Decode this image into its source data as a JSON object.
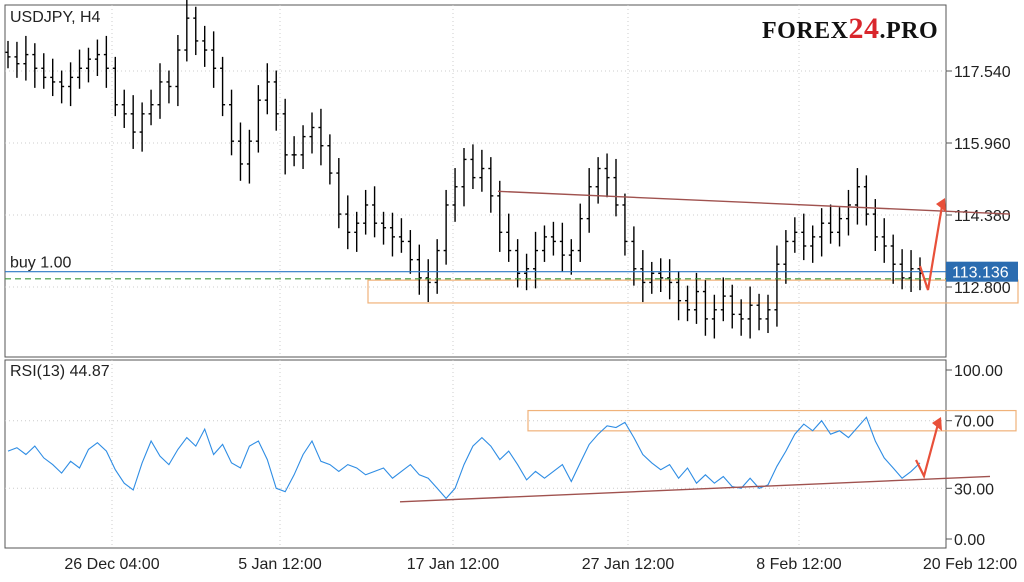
{
  "logo": {
    "prefix": "FOREX",
    "number": "24",
    "suffix": ".PRO"
  },
  "colors": {
    "candle": "#000000",
    "rsi_line": "#2f8de4",
    "trend_line": "#a0524f",
    "zone_border": "#f0b27a",
    "buy_line": "#2b78c4",
    "dashed_line": "#3a9a3a",
    "arrow": "#e8503a",
    "price_tag_bg": "#2b6cb0",
    "price_tag_text": "#ffffff",
    "grid": "#cccccc"
  },
  "chart_data": [
    {
      "type": "candlestick",
      "title": "USDJPY, H4",
      "ylim": [
        110.2,
        119.6
      ],
      "yticks": [
        "117.540",
        "115.960",
        "114.380",
        "112.800"
      ],
      "current_price": "113.136",
      "buy_label": "buy 1.00",
      "buy_level": 113.136,
      "dashed_level": 112.98,
      "x_labels": [
        "26 Dec 04:00",
        "5 Jan 12:00",
        "17 Jan 12:00",
        "27 Jan 12:00",
        "8 Feb 12:00",
        "20 Feb 12:00"
      ],
      "close_series": [
        117.85,
        117.7,
        117.9,
        117.6,
        117.4,
        117.3,
        117.2,
        117.4,
        117.6,
        117.8,
        117.9,
        117.6,
        116.8,
        116.6,
        116.2,
        116.6,
        116.8,
        117.3,
        117.2,
        118.0,
        118.7,
        118.2,
        118.0,
        117.6,
        116.8,
        116.0,
        115.5,
        116.0,
        116.9,
        117.3,
        116.6,
        115.7,
        115.7,
        116.1,
        116.3,
        115.9,
        115.3,
        114.4,
        114.0,
        114.2,
        114.6,
        114.2,
        114.1,
        113.9,
        113.8,
        113.4,
        113.0,
        112.9,
        113.6,
        114.6,
        115.0,
        115.6,
        115.2,
        115.4,
        114.8,
        114.0,
        113.6,
        113.1,
        113.2,
        113.6,
        113.9,
        113.8,
        113.5,
        113.6,
        114.3,
        115.0,
        115.4,
        115.2,
        114.6,
        113.8,
        113.2,
        112.9,
        113.1,
        113.0,
        112.9,
        112.5,
        112.3,
        112.7,
        112.1,
        112.3,
        112.6,
        112.2,
        112.1,
        112.4,
        112.1,
        112.3,
        113.3,
        113.8,
        114.0,
        113.7,
        113.9,
        114.2,
        114.0,
        114.3,
        114.6,
        115.0,
        114.4,
        113.9,
        113.7,
        113.3,
        113.0,
        113.2,
        113.1
      ],
      "resistance_line": {
        "start": {
          "x": "23 Jan",
          "y": 114.9
        },
        "end": {
          "x": "20 Feb",
          "y": 114.4
        }
      },
      "support_zone": [
        112.45,
        112.95
      ]
    },
    {
      "type": "line",
      "title": "RSI(13) 44.87",
      "ylim": [
        0,
        100
      ],
      "yticks": [
        "100.00",
        "70.00",
        "30.00",
        "0.00"
      ],
      "values": [
        52,
        54,
        50,
        55,
        48,
        44,
        39,
        46,
        42,
        53,
        57,
        52,
        41,
        33,
        29,
        45,
        58,
        49,
        44,
        53,
        60,
        55,
        65,
        50,
        56,
        45,
        42,
        55,
        58,
        47,
        30,
        28,
        38,
        50,
        58,
        46,
        44,
        40,
        44,
        42,
        38,
        40,
        42,
        36,
        40,
        44,
        38,
        36,
        30,
        24,
        30,
        44,
        55,
        60,
        55,
        47,
        52,
        44,
        35,
        40,
        36,
        40,
        44,
        34,
        45,
        56,
        62,
        67,
        66,
        69,
        60,
        50,
        45,
        41,
        44,
        36,
        42,
        33,
        38,
        33,
        37,
        31,
        30,
        36,
        30,
        32,
        43,
        52,
        62,
        68,
        64,
        70,
        62,
        64,
        60,
        66,
        72,
        58,
        48,
        42,
        36,
        40,
        45
      ],
      "trend_line": {
        "start": {
          "x": "17 Jan",
          "y": 22
        },
        "end": {
          "x": "20 Feb",
          "y": 37
        }
      },
      "overbought_zone": [
        64,
        76
      ]
    }
  ]
}
